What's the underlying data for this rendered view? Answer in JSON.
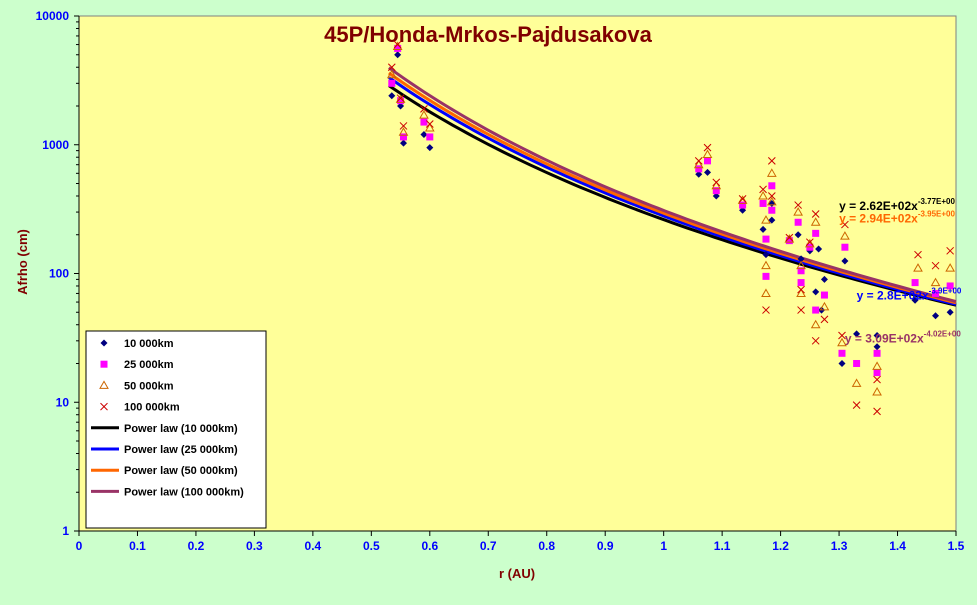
{
  "chart_data": {
    "type": "scatter",
    "title": "45P/Honda-Mrkos-Pajdusakova",
    "xlabel": "r (AU)",
    "ylabel": "Afrho (cm)",
    "xlim": [
      0,
      1.5
    ],
    "ylim": [
      1,
      10000
    ],
    "yscale": "log",
    "x_ticks": [
      "0",
      "0.1",
      "0.2",
      "0.3",
      "0.4",
      "0.5",
      "0.6",
      "0.7",
      "0.8",
      "0.9",
      "1",
      "1.1",
      "1.2",
      "1.3",
      "1.4",
      "1.5"
    ],
    "y_ticks": [
      "1",
      "10",
      "100",
      "1000",
      "10000"
    ],
    "grid": false,
    "legend_position": "bottom-left",
    "colors": {
      "background": "#ccffcc",
      "plot_area": "#ffff99",
      "title": "#800000",
      "axis_label": "#800000",
      "tick_label": "#0000ff"
    },
    "series": [
      {
        "name": "10 000km",
        "marker": "diamond",
        "color": "#000080",
        "points": [
          [
            0.535,
            2400
          ],
          [
            0.545,
            5000
          ],
          [
            0.55,
            2000
          ],
          [
            0.555,
            1030
          ],
          [
            0.59,
            1200
          ],
          [
            0.6,
            950
          ],
          [
            1.06,
            590
          ],
          [
            1.075,
            610
          ],
          [
            1.09,
            400
          ],
          [
            1.135,
            310
          ],
          [
            1.17,
            220
          ],
          [
            1.175,
            140
          ],
          [
            1.185,
            260
          ],
          [
            1.185,
            350
          ],
          [
            1.215,
            185
          ],
          [
            1.23,
            200
          ],
          [
            1.235,
            130
          ],
          [
            1.25,
            150
          ],
          [
            1.26,
            72
          ],
          [
            1.265,
            155
          ],
          [
            1.27,
            52
          ],
          [
            1.275,
            90
          ],
          [
            1.305,
            20
          ],
          [
            1.31,
            125
          ],
          [
            1.33,
            34
          ],
          [
            1.365,
            33
          ],
          [
            1.365,
            27
          ],
          [
            1.43,
            62
          ],
          [
            1.465,
            47
          ],
          [
            1.49,
            50
          ]
        ]
      },
      {
        "name": "25 000km",
        "marker": "square",
        "color": "#ff00ff",
        "points": [
          [
            0.535,
            3000
          ],
          [
            0.545,
            5600
          ],
          [
            0.55,
            2200
          ],
          [
            0.555,
            1150
          ],
          [
            0.59,
            1500
          ],
          [
            0.6,
            1150
          ],
          [
            1.06,
            650
          ],
          [
            1.075,
            750
          ],
          [
            1.09,
            440
          ],
          [
            1.135,
            340
          ],
          [
            1.17,
            350
          ],
          [
            1.175,
            185
          ],
          [
            1.175,
            95
          ],
          [
            1.185,
            480
          ],
          [
            1.185,
            310
          ],
          [
            1.215,
            180
          ],
          [
            1.23,
            250
          ],
          [
            1.235,
            105
          ],
          [
            1.235,
            85
          ],
          [
            1.25,
            160
          ],
          [
            1.26,
            205
          ],
          [
            1.26,
            52
          ],
          [
            1.275,
            68
          ],
          [
            1.305,
            24
          ],
          [
            1.31,
            160
          ],
          [
            1.33,
            20
          ],
          [
            1.365,
            17
          ],
          [
            1.365,
            24
          ],
          [
            1.43,
            85
          ],
          [
            1.465,
            70
          ],
          [
            1.49,
            80
          ]
        ]
      },
      {
        "name": "50 000km",
        "marker": "triangle",
        "color": "#cc6600",
        "points": [
          [
            0.535,
            3500
          ],
          [
            0.545,
            5800
          ],
          [
            0.55,
            2250
          ],
          [
            0.555,
            1250
          ],
          [
            0.59,
            1700
          ],
          [
            0.6,
            1350
          ],
          [
            1.06,
            700
          ],
          [
            1.075,
            840
          ],
          [
            1.09,
            480
          ],
          [
            1.135,
            370
          ],
          [
            1.17,
            400
          ],
          [
            1.175,
            260
          ],
          [
            1.175,
            115
          ],
          [
            1.175,
            70
          ],
          [
            1.185,
            600
          ],
          [
            1.185,
            360
          ],
          [
            1.215,
            185
          ],
          [
            1.23,
            300
          ],
          [
            1.235,
            115
          ],
          [
            1.235,
            70
          ],
          [
            1.25,
            170
          ],
          [
            1.26,
            250
          ],
          [
            1.26,
            40
          ],
          [
            1.275,
            55
          ],
          [
            1.305,
            29
          ],
          [
            1.31,
            195
          ],
          [
            1.33,
            14
          ],
          [
            1.365,
            19
          ],
          [
            1.365,
            12
          ],
          [
            1.435,
            110
          ],
          [
            1.465,
            85
          ],
          [
            1.49,
            110
          ]
        ]
      },
      {
        "name": "100 000km",
        "marker": "x",
        "color": "#cc0000",
        "points": [
          [
            0.535,
            4000
          ],
          [
            0.545,
            6000
          ],
          [
            0.55,
            2300
          ],
          [
            0.555,
            1400
          ],
          [
            0.59,
            1900
          ],
          [
            0.6,
            1450
          ],
          [
            1.06,
            750
          ],
          [
            1.075,
            950
          ],
          [
            1.09,
            510
          ],
          [
            1.135,
            380
          ],
          [
            1.17,
            450
          ],
          [
            1.175,
            52
          ],
          [
            1.185,
            750
          ],
          [
            1.185,
            400
          ],
          [
            1.215,
            190
          ],
          [
            1.23,
            340
          ],
          [
            1.235,
            75
          ],
          [
            1.235,
            52
          ],
          [
            1.25,
            175
          ],
          [
            1.26,
            290
          ],
          [
            1.26,
            30
          ],
          [
            1.275,
            44
          ],
          [
            1.305,
            33
          ],
          [
            1.31,
            240
          ],
          [
            1.33,
            9.5
          ],
          [
            1.365,
            8.5
          ],
          [
            1.365,
            15
          ],
          [
            1.435,
            140
          ],
          [
            1.465,
            115
          ],
          [
            1.49,
            150
          ]
        ]
      }
    ],
    "fits": [
      {
        "name": "Power law (10 000km)",
        "color": "#000000",
        "a": 262,
        "b": -3.775,
        "label": "y = 2.62E+02x",
        "exp": "-3.77E+00",
        "label_color": "#000000",
        "label_at": [
          1.3,
          310
        ]
      },
      {
        "name": "Power law (25 000km)",
        "color": "#0000ff",
        "a": 280,
        "b": -3.9,
        "label": "y = 2.8E+02x",
        "exp": "-3.9E+00",
        "label_color": "#0000ff",
        "label_at": [
          1.33,
          63
        ]
      },
      {
        "name": "Power law (50 000km)",
        "color": "#ff6600",
        "a": 294,
        "b": -3.95,
        "label": "y = 2.94E+02x",
        "exp": "-3.95E+00",
        "label_color": "#ff6600",
        "label_at": [
          1.3,
          250
        ]
      },
      {
        "name": "Power law (100 000km)",
        "color": "#993366",
        "a": 309,
        "b": -4.02,
        "label": "y = 3.09E+02x",
        "exp": "-4.02E+00",
        "label_color": "#993366",
        "label_at": [
          1.31,
          29
        ]
      }
    ],
    "fit_range": [
      0.53,
      1.5
    ]
  }
}
